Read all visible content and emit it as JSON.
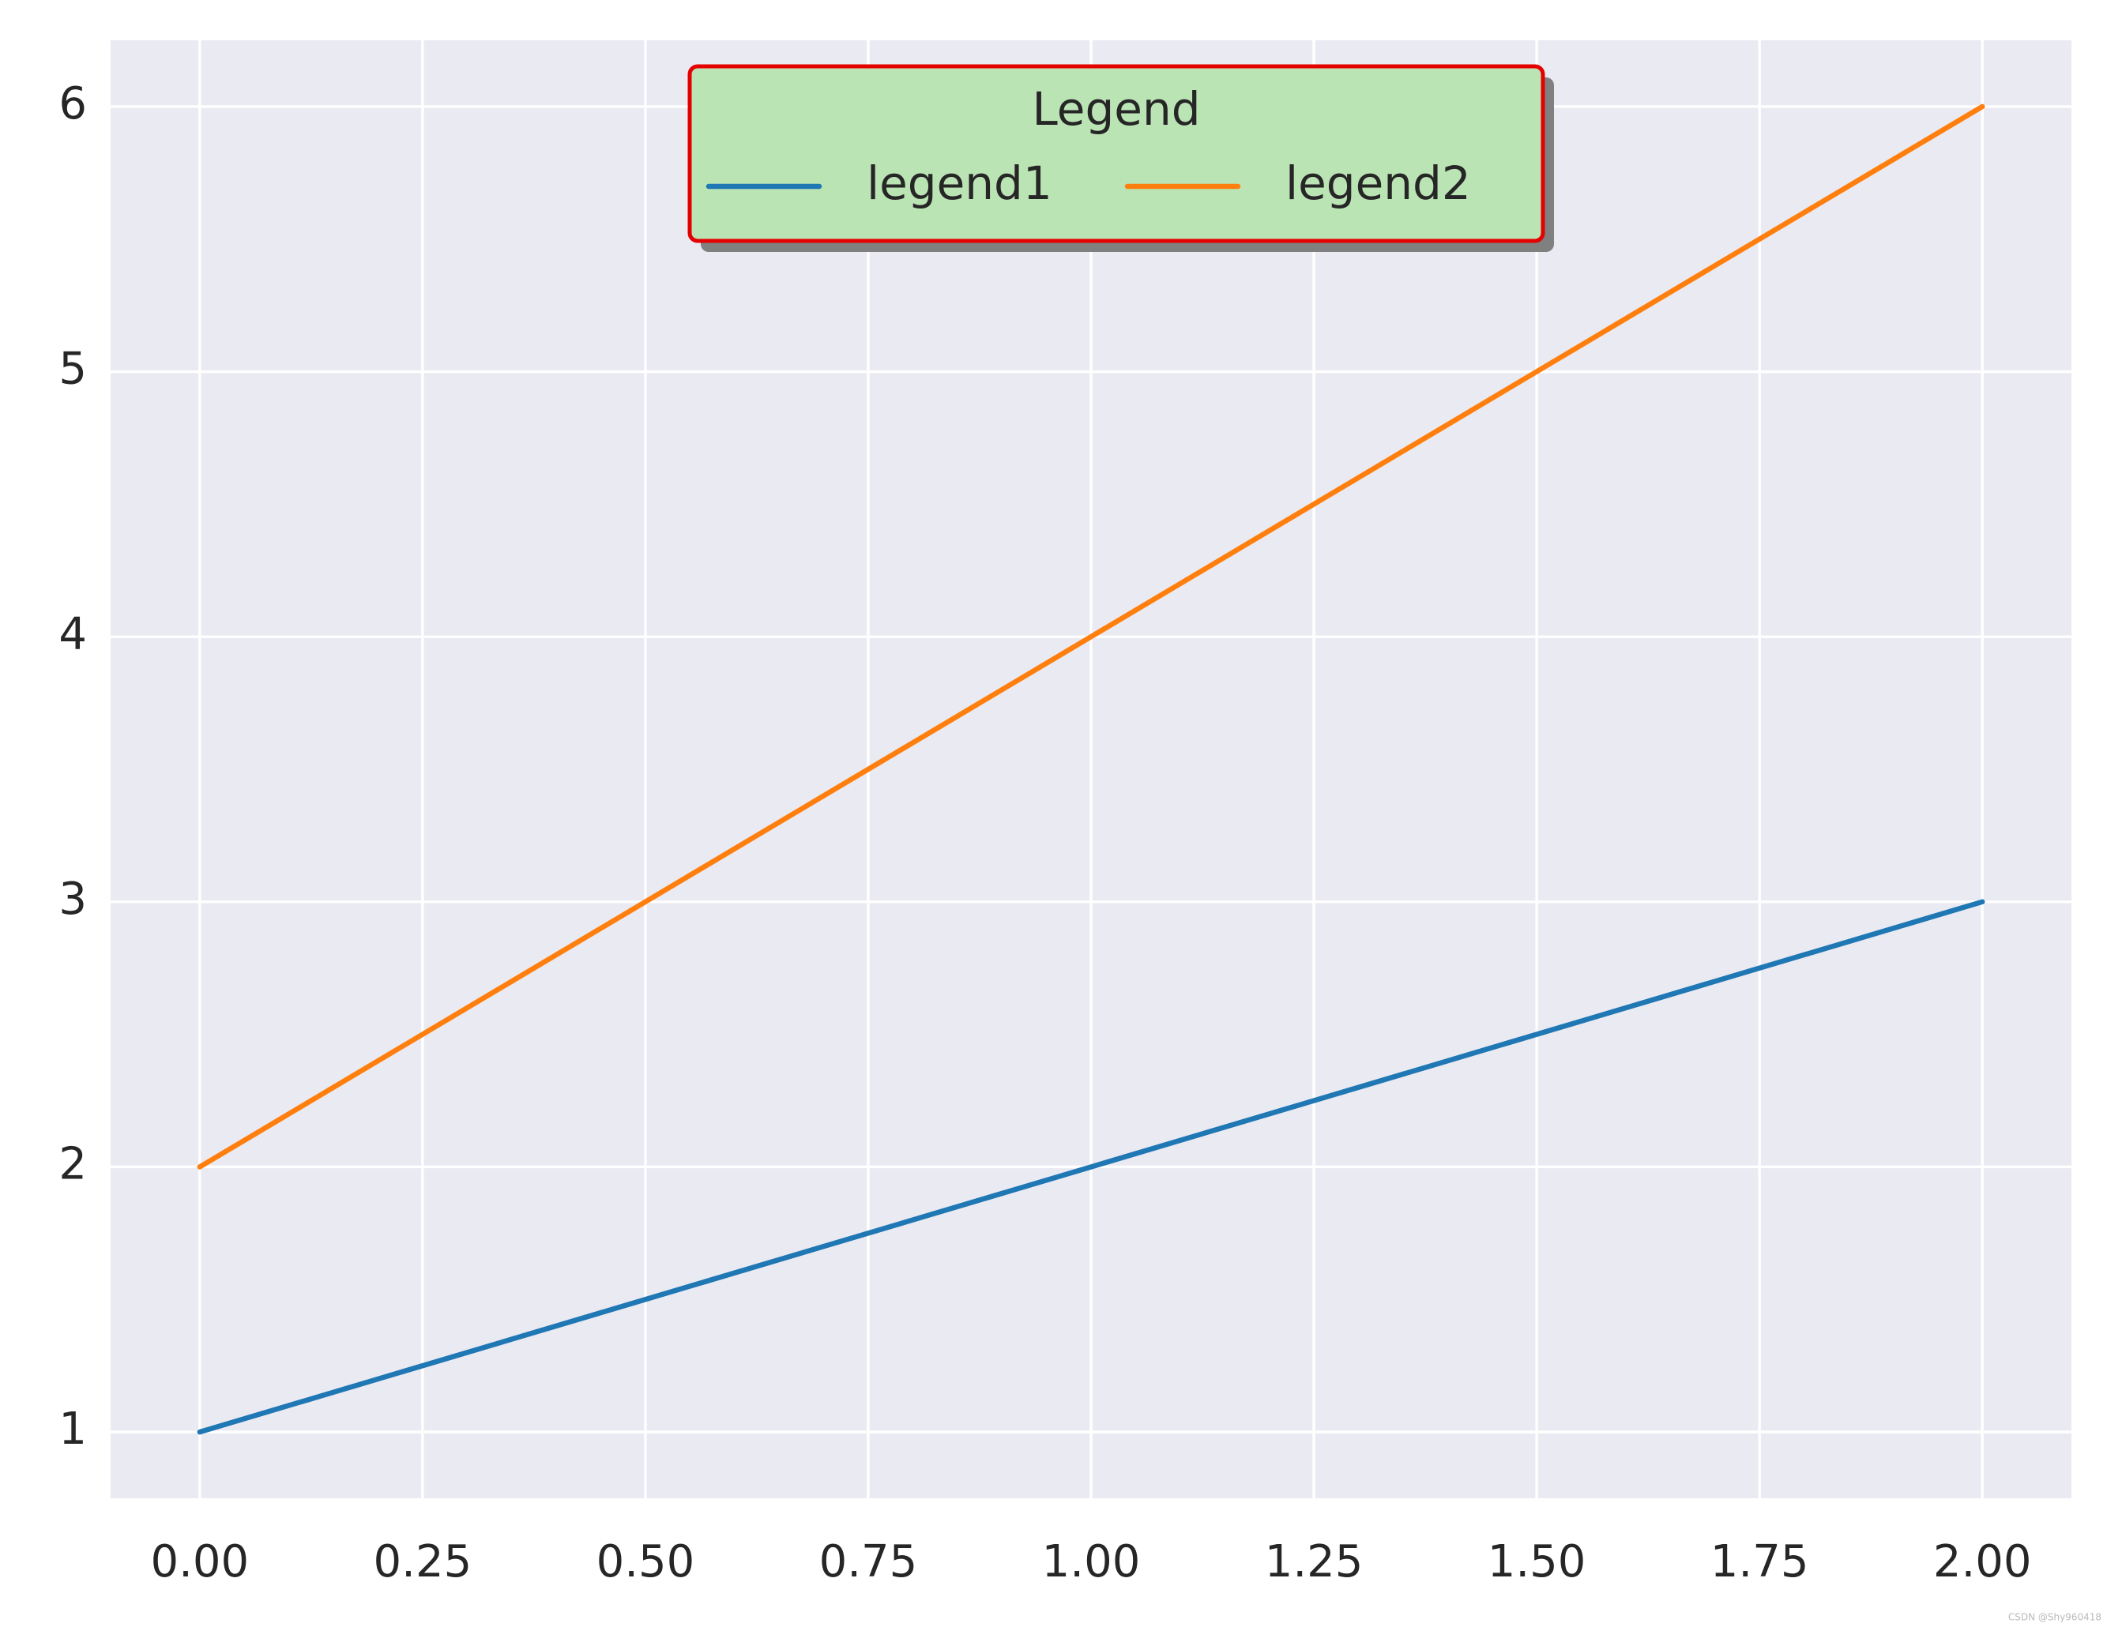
{
  "chart_data": {
    "type": "line",
    "x": [
      0,
      1,
      2
    ],
    "series": [
      {
        "name": "legend1",
        "color": "#1f77b4",
        "values": [
          1,
          2,
          3
        ]
      },
      {
        "name": "legend2",
        "color": "#ff7f0e",
        "values": [
          2,
          4,
          6
        ]
      }
    ],
    "xlim": [
      -0.1,
      2.1
    ],
    "xticks": [
      {
        "value": 0,
        "label": "0.00"
      },
      {
        "value": 0.25,
        "label": "0.25"
      },
      {
        "value": 0.5,
        "label": "0.50"
      },
      {
        "value": 0.75,
        "label": "0.75"
      },
      {
        "value": 1,
        "label": "1.00"
      },
      {
        "value": 1.25,
        "label": "1.25"
      },
      {
        "value": 1.5,
        "label": "1.50"
      },
      {
        "value": 1.75,
        "label": "1.75"
      },
      {
        "value": 2,
        "label": "2.00"
      }
    ],
    "ylim": [
      0.75,
      6.25
    ],
    "yticks": [
      1,
      2,
      3,
      4,
      5,
      6
    ],
    "grid": true,
    "legend": {
      "title": "Legend",
      "location": "upper center",
      "columns": 2,
      "facecolor": "#bbe4b4",
      "edgecolor": "#e50000",
      "shadow": true
    },
    "watermark": "CSDN @Shy960418"
  }
}
